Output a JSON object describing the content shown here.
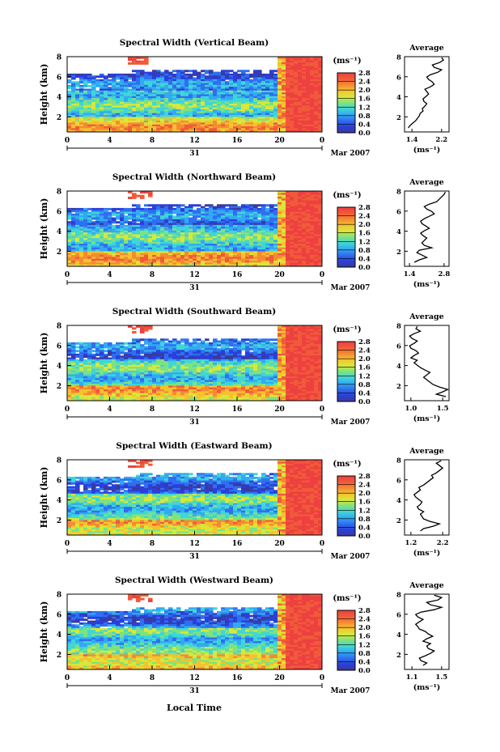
{
  "figure": {
    "xlabel": "Local Time",
    "date_label": "Mar 2007",
    "day_label": "31",
    "colorbar_unit": "(ms⁻¹)",
    "avg_title": "Average",
    "avg_unit": "(ms⁻¹)",
    "ylabel": "Height (km)"
  },
  "colors": {
    "white_gap": "#ffffff",
    "colormap": [
      "#3a3a99",
      "#2b3fd9",
      "#2f6ff0",
      "#33a9f2",
      "#3fd6d6",
      "#7fe27f",
      "#d8e83a",
      "#f5c22f",
      "#f58a32",
      "#f05a3a",
      "#ee4040"
    ]
  },
  "chart_data": [
    {
      "type": "heatmap",
      "title": "Spectral Width (Vertical Beam)",
      "x_ticks": [
        "0",
        "4",
        "8",
        "12",
        "16",
        "20",
        "0"
      ],
      "y_ticks": [
        "2",
        "4",
        "6",
        "8"
      ],
      "xlim": [
        0,
        24
      ],
      "ylim": [
        0.5,
        8.0
      ],
      "colorbar_ticks": [
        "0.0",
        "0.4",
        "0.8",
        "1.2",
        "1.6",
        "2.0",
        "2.4",
        "2.8"
      ],
      "colorbar_range": [
        0.0,
        2.8
      ],
      "avg_x_ticks": [
        "1.4",
        "2.2"
      ],
      "avg_xlim": [
        1.2,
        2.4
      ],
      "avg_y_ticks": [
        "2",
        "4",
        "6",
        "8"
      ],
      "avg_profile": [
        1.3,
        1.35,
        1.42,
        1.5,
        1.55,
        1.6,
        1.62,
        1.7,
        1.68,
        1.75,
        1.8,
        1.72,
        1.7,
        1.78,
        1.85,
        1.8,
        1.75,
        1.9,
        2.0,
        1.95,
        1.85,
        1.8,
        1.9,
        2.1,
        2.2,
        2.0,
        1.95,
        2.15,
        2.25,
        2.2
      ]
    },
    {
      "type": "heatmap",
      "title": "Spectral Width (Northward Beam)",
      "x_ticks": [
        "0",
        "4",
        "8",
        "12",
        "16",
        "20",
        "0"
      ],
      "y_ticks": [
        "2",
        "4",
        "6",
        "8"
      ],
      "xlim": [
        0,
        24
      ],
      "ylim": [
        0.5,
        8.0
      ],
      "colorbar_ticks": [
        "0.0",
        "0.4",
        "0.8",
        "1.2",
        "1.6",
        "2.0",
        "2.4",
        "2.8"
      ],
      "colorbar_range": [
        0.0,
        2.8
      ],
      "avg_x_ticks": [
        "1.4",
        "2.8"
      ],
      "avg_xlim": [
        1.2,
        3.0
      ],
      "avg_y_ticks": [
        "2",
        "4",
        "6",
        "8"
      ],
      "avg_profile": [
        1.6,
        1.8,
        2.1,
        1.9,
        1.7,
        1.8,
        2.3,
        2.0,
        1.9,
        2.0,
        2.1,
        1.95,
        1.85,
        2.0,
        2.2,
        2.05,
        1.9,
        1.85,
        2.0,
        2.2,
        2.4,
        2.3,
        2.1,
        2.0,
        2.2,
        2.5,
        2.6,
        2.7,
        2.8,
        2.85
      ]
    },
    {
      "type": "heatmap",
      "title": "Spectral Width (Southward Beam)",
      "x_ticks": [
        "0",
        "4",
        "8",
        "12",
        "16",
        "20",
        "0"
      ],
      "y_ticks": [
        "2",
        "4",
        "6",
        "8"
      ],
      "xlim": [
        0,
        24
      ],
      "ylim": [
        0.5,
        8.0
      ],
      "colorbar_ticks": [
        "0.0",
        "0.4",
        "0.8",
        "1.2",
        "1.6",
        "2.0",
        "2.4",
        "2.8"
      ],
      "colorbar_range": [
        0.0,
        2.8
      ],
      "avg_x_ticks": [
        "1.0",
        "1.5"
      ],
      "avg_xlim": [
        0.9,
        1.6
      ],
      "avg_y_ticks": [
        "2",
        "4",
        "6",
        "8"
      ],
      "avg_profile": [
        1.55,
        1.4,
        1.5,
        1.58,
        1.45,
        1.35,
        1.3,
        1.25,
        1.2,
        1.25,
        1.3,
        1.22,
        1.15,
        1.1,
        1.05,
        1.1,
        1.0,
        1.05,
        1.12,
        1.08,
        1.0,
        0.98,
        1.05,
        1.1,
        1.02,
        0.98,
        1.05,
        1.15,
        1.08,
        1.1
      ]
    },
    {
      "type": "heatmap",
      "title": "Spectral Width (Eastward Beam)",
      "x_ticks": [
        "0",
        "4",
        "8",
        "12",
        "16",
        "20",
        "0"
      ],
      "y_ticks": [
        "2",
        "4",
        "6",
        "8"
      ],
      "xlim": [
        0,
        24
      ],
      "ylim": [
        0.5,
        8.0
      ],
      "colorbar_ticks": [
        "0.0",
        "0.4",
        "0.8",
        "1.2",
        "1.6",
        "2.0",
        "2.4",
        "2.8"
      ],
      "colorbar_range": [
        0.0,
        2.8
      ],
      "avg_x_ticks": [
        "1.2",
        "2.2"
      ],
      "avg_xlim": [
        1.0,
        2.4
      ],
      "avg_y_ticks": [
        "2",
        "4",
        "6",
        "8"
      ],
      "avg_profile": [
        1.5,
        1.6,
        1.9,
        2.1,
        1.8,
        1.6,
        1.55,
        1.5,
        1.6,
        1.45,
        1.4,
        1.5,
        1.55,
        1.45,
        1.35,
        1.3,
        1.4,
        1.5,
        1.45,
        1.6,
        1.7,
        1.8,
        1.9,
        1.85,
        2.0,
        2.1,
        2.2,
        2.1,
        2.0,
        2.15
      ]
    },
    {
      "type": "heatmap",
      "title": "Spectral Width (Westward Beam)",
      "x_ticks": [
        "0",
        "4",
        "8",
        "12",
        "16",
        "20",
        "0"
      ],
      "y_ticks": [
        "2",
        "4",
        "6",
        "8"
      ],
      "xlim": [
        0,
        24
      ],
      "ylim": [
        0.5,
        8.0
      ],
      "colorbar_ticks": [
        "0.0",
        "0.4",
        "0.8",
        "1.2",
        "1.6",
        "2.0",
        "2.4",
        "2.8"
      ],
      "colorbar_range": [
        0.0,
        2.8
      ],
      "avg_x_ticks": [
        "1.1",
        "1.5"
      ],
      "avg_xlim": [
        1.0,
        1.6
      ],
      "avg_y_ticks": [
        "2",
        "4",
        "6",
        "8"
      ],
      "avg_profile": [
        1.25,
        1.3,
        1.22,
        1.2,
        1.28,
        1.35,
        1.4,
        1.32,
        1.3,
        1.35,
        1.25,
        1.3,
        1.38,
        1.32,
        1.28,
        1.2,
        1.18,
        1.15,
        1.2,
        1.25,
        1.18,
        1.15,
        1.22,
        1.4,
        1.5,
        1.35,
        1.3,
        1.45,
        1.5,
        1.4
      ]
    }
  ]
}
